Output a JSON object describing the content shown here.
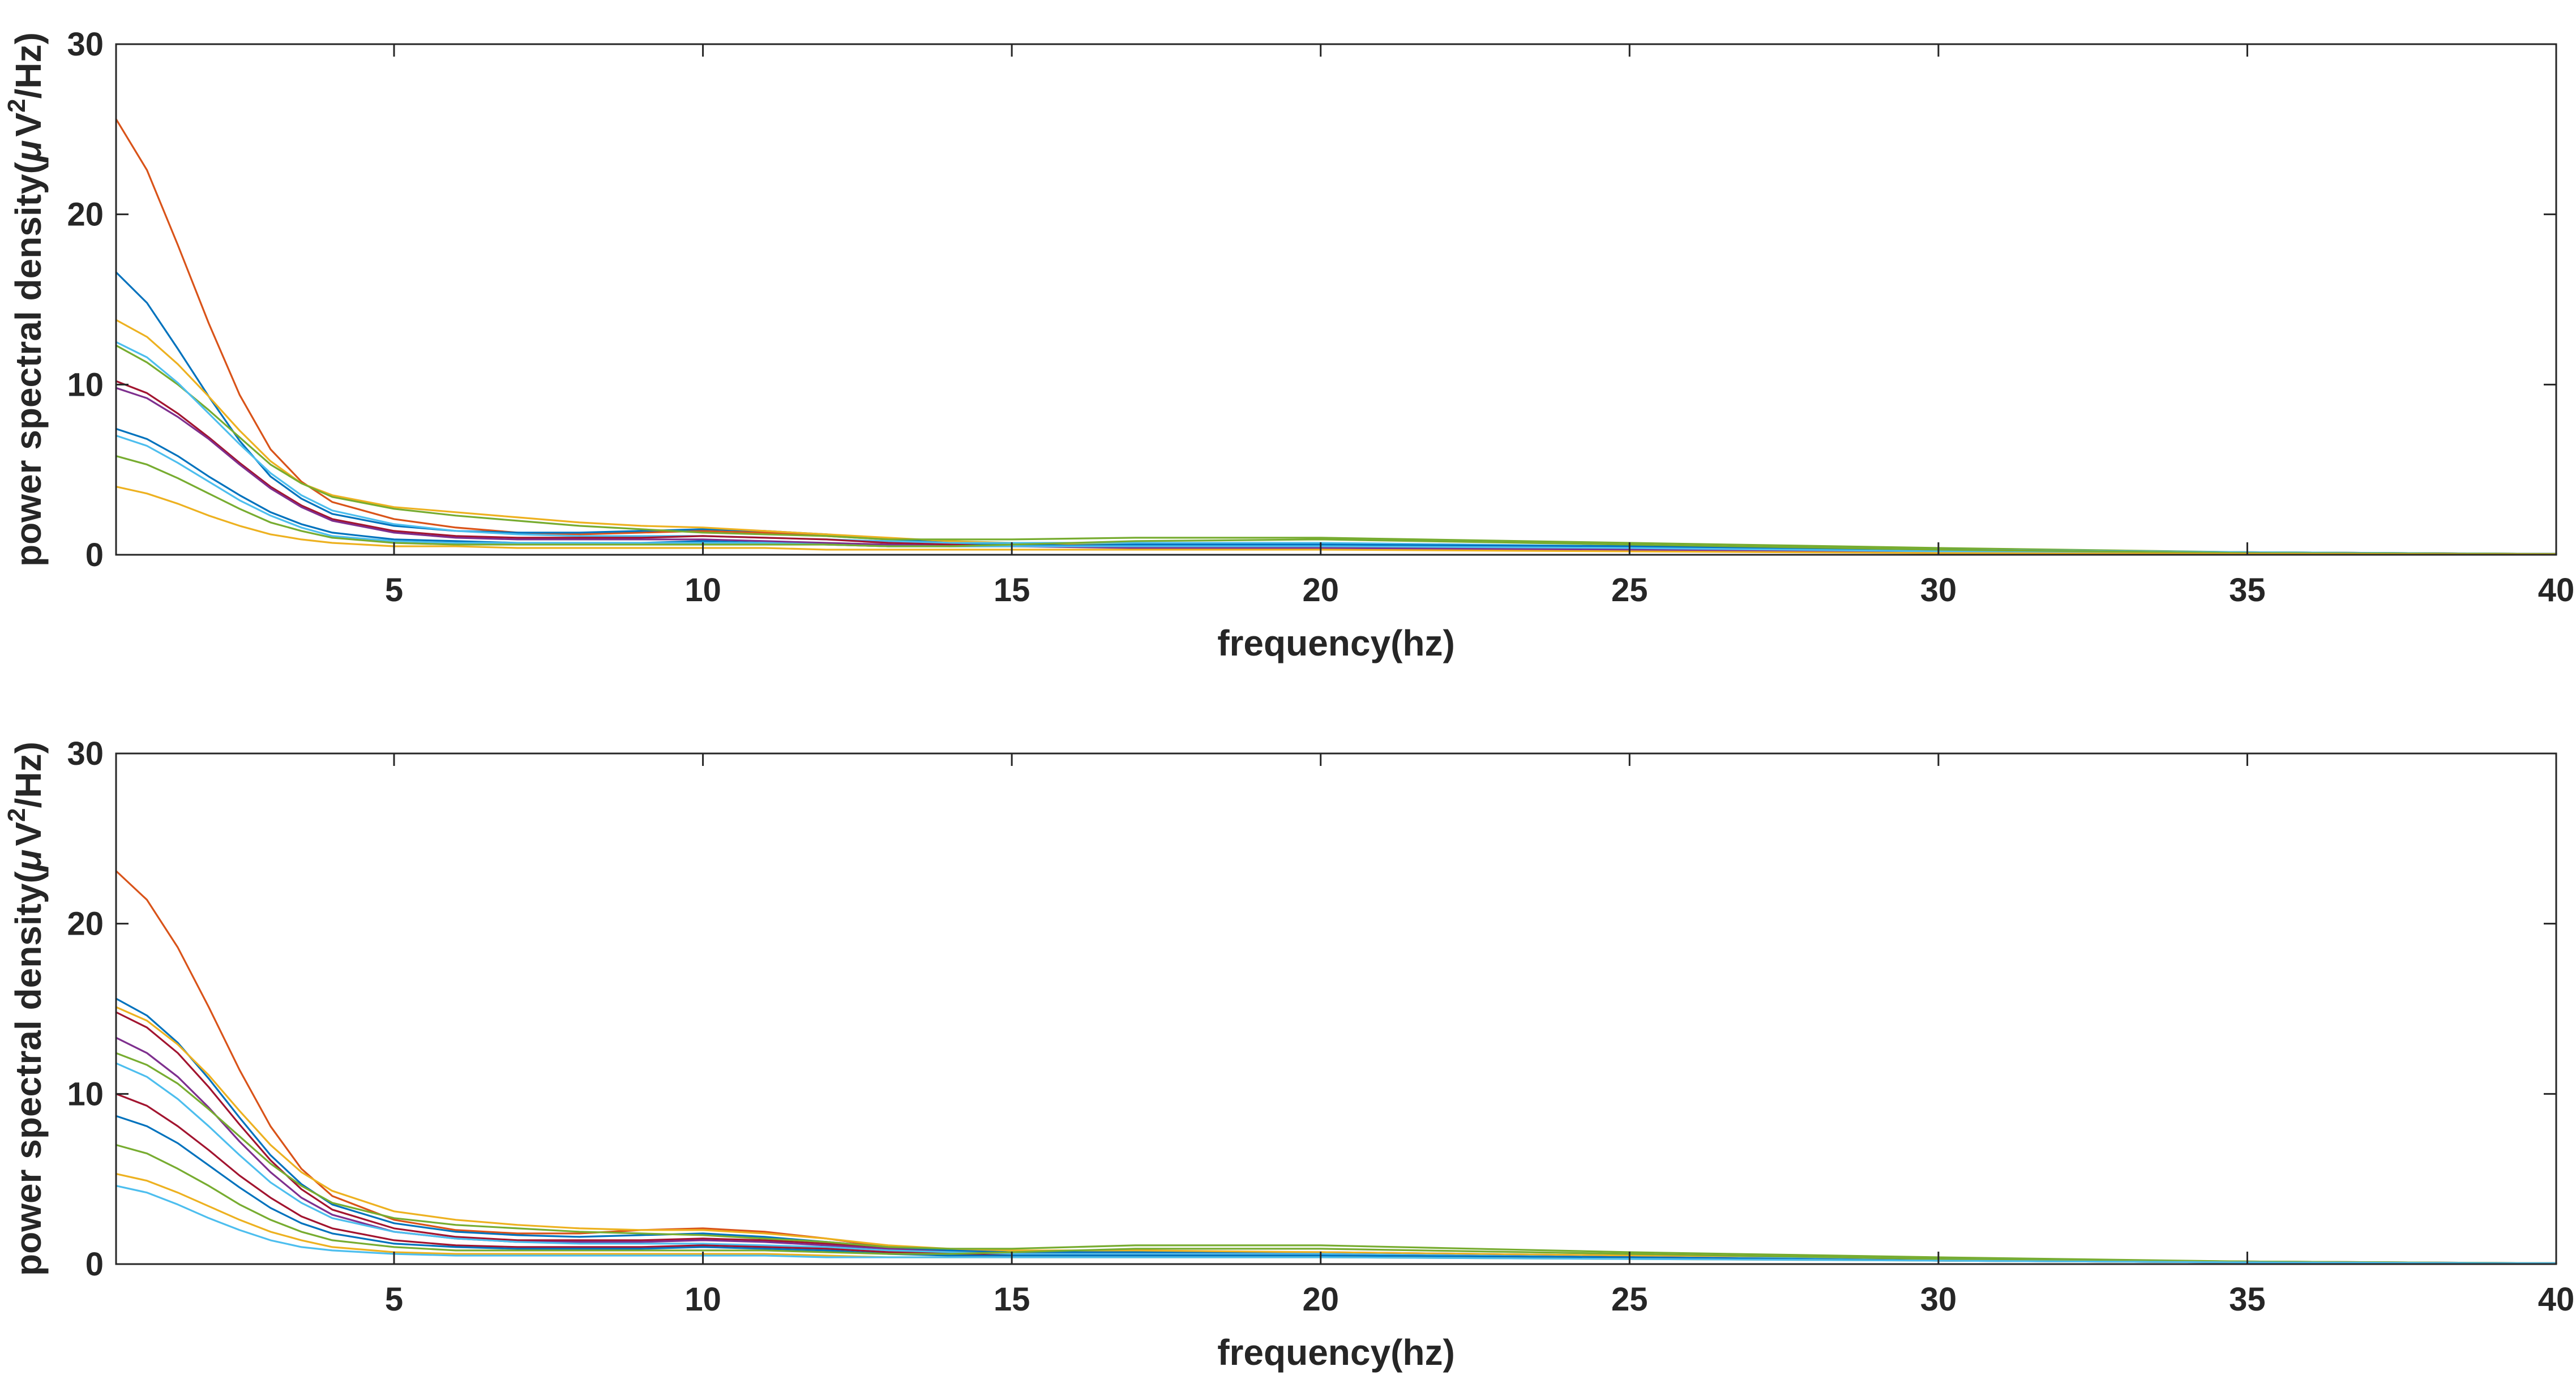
{
  "chart_data": [
    {
      "type": "line",
      "xlabel": "frequency(hz)",
      "ylabel": "power spectral density(",
      "ylabel_mu": "μ",
      "ylabel_V": "V",
      "ylabel_exp": "2",
      "ylabel_tail": "/Hz)",
      "xlim": [
        0.5,
        40
      ],
      "ylim": [
        0,
        30
      ],
      "xticks": [
        5,
        10,
        15,
        20,
        25,
        30,
        35,
        40
      ],
      "yticks": [
        0,
        10,
        20,
        30
      ],
      "xtick_labels": [
        "5",
        "10",
        "15",
        "20",
        "25",
        "30",
        "35",
        "40"
      ],
      "ytick_labels": [
        "0",
        "10",
        "20",
        "30"
      ],
      "grid": false,
      "x": [
        0.5,
        1,
        1.5,
        2,
        2.5,
        3,
        3.5,
        4,
        5,
        6,
        7,
        8,
        9,
        10,
        11,
        12,
        13,
        14,
        15,
        17,
        20,
        25,
        30,
        35,
        40
      ],
      "series": [
        {
          "color": "#D95319",
          "values": [
            25.6,
            22.6,
            18.2,
            13.6,
            9.4,
            6.2,
            4.3,
            3.1,
            2.1,
            1.6,
            1.3,
            1.2,
            1.3,
            1.4,
            1.3,
            1.1,
            0.9,
            0.7,
            0.6,
            0.5,
            0.5,
            0.4,
            0.3,
            0.15,
            0.05
          ]
        },
        {
          "color": "#0072BD",
          "values": [
            16.6,
            14.8,
            12.1,
            9.3,
            6.7,
            4.6,
            3.3,
            2.4,
            1.7,
            1.4,
            1.3,
            1.3,
            1.4,
            1.5,
            1.4,
            1.2,
            0.9,
            0.7,
            0.6,
            0.6,
            0.6,
            0.5,
            0.3,
            0.15,
            0.05
          ]
        },
        {
          "color": "#EDB120",
          "values": [
            13.8,
            12.8,
            11.2,
            9.3,
            7.3,
            5.5,
            4.2,
            3.5,
            2.8,
            2.5,
            2.2,
            1.9,
            1.7,
            1.6,
            1.4,
            1.2,
            1.0,
            0.8,
            0.7,
            0.6,
            0.6,
            0.5,
            0.3,
            0.15,
            0.05
          ]
        },
        {
          "color": "#77AC30",
          "values": [
            12.3,
            11.3,
            10.0,
            8.5,
            6.9,
            5.3,
            4.2,
            3.4,
            2.7,
            2.3,
            2.0,
            1.7,
            1.5,
            1.3,
            1.2,
            1.1,
            0.9,
            0.9,
            0.9,
            1.0,
            1.0,
            0.7,
            0.4,
            0.15,
            0.05
          ]
        },
        {
          "color": "#4DBEEE",
          "values": [
            12.5,
            11.6,
            10.1,
            8.3,
            6.5,
            4.8,
            3.5,
            2.6,
            1.8,
            1.4,
            1.2,
            1.1,
            1.1,
            1.1,
            1.0,
            0.9,
            0.8,
            0.7,
            0.7,
            0.7,
            0.7,
            0.5,
            0.3,
            0.15,
            0.05
          ]
        },
        {
          "color": "#A2142F",
          "values": [
            10.2,
            9.5,
            8.3,
            6.9,
            5.4,
            4.0,
            2.9,
            2.1,
            1.4,
            1.1,
            1.0,
            1.0,
            1.0,
            1.1,
            1.0,
            0.9,
            0.7,
            0.6,
            0.5,
            0.5,
            0.4,
            0.3,
            0.2,
            0.1,
            0.05
          ]
        },
        {
          "color": "#7E2F8E",
          "values": [
            9.8,
            9.2,
            8.1,
            6.8,
            5.3,
            3.9,
            2.8,
            2.0,
            1.3,
            1.0,
            0.9,
            0.9,
            0.9,
            0.9,
            0.8,
            0.7,
            0.6,
            0.5,
            0.5,
            0.4,
            0.4,
            0.3,
            0.2,
            0.1,
            0.05
          ]
        },
        {
          "color": "#0072BD",
          "values": [
            7.4,
            6.8,
            5.8,
            4.6,
            3.5,
            2.5,
            1.8,
            1.3,
            0.9,
            0.8,
            0.7,
            0.7,
            0.7,
            0.8,
            0.7,
            0.6,
            0.5,
            0.5,
            0.5,
            0.6,
            0.6,
            0.5,
            0.3,
            0.1,
            0.05
          ]
        },
        {
          "color": "#4DBEEE",
          "values": [
            7.0,
            6.4,
            5.4,
            4.3,
            3.2,
            2.3,
            1.6,
            1.1,
            0.8,
            0.7,
            0.7,
            0.7,
            0.7,
            0.7,
            0.7,
            0.6,
            0.5,
            0.5,
            0.5,
            0.5,
            0.5,
            0.4,
            0.2,
            0.1,
            0.05
          ]
        },
        {
          "color": "#77AC30",
          "values": [
            5.8,
            5.3,
            4.5,
            3.6,
            2.7,
            1.9,
            1.4,
            1.0,
            0.7,
            0.6,
            0.6,
            0.6,
            0.6,
            0.6,
            0.6,
            0.6,
            0.5,
            0.5,
            0.6,
            0.8,
            0.9,
            0.6,
            0.3,
            0.1,
            0.05
          ]
        },
        {
          "color": "#EDB120",
          "values": [
            4.0,
            3.6,
            3.0,
            2.3,
            1.7,
            1.2,
            0.9,
            0.7,
            0.5,
            0.5,
            0.4,
            0.4,
            0.4,
            0.4,
            0.4,
            0.3,
            0.3,
            0.3,
            0.3,
            0.3,
            0.3,
            0.2,
            0.1,
            0.05,
            0.02
          ]
        }
      ]
    },
    {
      "type": "line",
      "xlabel": "frequency(hz)",
      "ylabel": "power spectral density(",
      "ylabel_mu": "μ",
      "ylabel_V": "V",
      "ylabel_exp": "2",
      "ylabel_tail": "/Hz)",
      "xlim": [
        0.5,
        40
      ],
      "ylim": [
        0,
        30
      ],
      "xticks": [
        5,
        10,
        15,
        20,
        25,
        30,
        35,
        40
      ],
      "yticks": [
        0,
        10,
        20,
        30
      ],
      "xtick_labels": [
        "5",
        "10",
        "15",
        "20",
        "25",
        "30",
        "35",
        "40"
      ],
      "ytick_labels": [
        "0",
        "10",
        "20",
        "30"
      ],
      "grid": false,
      "x": [
        0.5,
        1,
        1.5,
        2,
        2.5,
        3,
        3.5,
        4,
        5,
        6,
        7,
        8,
        9,
        10,
        11,
        12,
        13,
        14,
        15,
        17,
        20,
        25,
        30,
        35,
        40
      ],
      "series": [
        {
          "color": "#D95319",
          "values": [
            23.1,
            21.4,
            18.6,
            15.1,
            11.4,
            8.1,
            5.6,
            4.0,
            2.6,
            2.0,
            1.8,
            1.8,
            2.0,
            2.1,
            1.9,
            1.5,
            1.0,
            0.8,
            0.7,
            0.7,
            0.7,
            0.5,
            0.3,
            0.15,
            0.05
          ]
        },
        {
          "color": "#0072BD",
          "values": [
            15.6,
            14.6,
            13.0,
            10.9,
            8.6,
            6.4,
            4.7,
            3.5,
            2.4,
            1.9,
            1.7,
            1.6,
            1.7,
            1.8,
            1.6,
            1.3,
            1.0,
            0.8,
            0.7,
            0.7,
            0.6,
            0.5,
            0.3,
            0.15,
            0.05
          ]
        },
        {
          "color": "#EDB120",
          "values": [
            15.1,
            14.3,
            12.9,
            11.1,
            9.0,
            7.0,
            5.4,
            4.3,
            3.1,
            2.6,
            2.3,
            2.1,
            2.0,
            2.0,
            1.8,
            1.5,
            1.1,
            0.9,
            0.8,
            0.8,
            0.7,
            0.5,
            0.3,
            0.15,
            0.05
          ]
        },
        {
          "color": "#A2142F",
          "values": [
            14.8,
            13.9,
            12.4,
            10.4,
            8.2,
            6.1,
            4.4,
            3.2,
            2.1,
            1.6,
            1.4,
            1.4,
            1.4,
            1.5,
            1.4,
            1.2,
            0.9,
            0.7,
            0.6,
            0.6,
            0.6,
            0.4,
            0.3,
            0.1,
            0.05
          ]
        },
        {
          "color": "#7E2F8E",
          "values": [
            13.3,
            12.4,
            11.0,
            9.2,
            7.2,
            5.4,
            3.9,
            2.9,
            1.9,
            1.5,
            1.3,
            1.3,
            1.3,
            1.4,
            1.3,
            1.1,
            0.9,
            0.7,
            0.6,
            0.6,
            0.6,
            0.4,
            0.3,
            0.1,
            0.05
          ]
        },
        {
          "color": "#77AC30",
          "values": [
            12.4,
            11.7,
            10.6,
            9.1,
            7.5,
            5.9,
            4.6,
            3.6,
            2.7,
            2.3,
            2.1,
            1.9,
            1.8,
            1.7,
            1.5,
            1.3,
            1.0,
            0.9,
            0.9,
            1.1,
            1.1,
            0.7,
            0.4,
            0.15,
            0.05
          ]
        },
        {
          "color": "#4DBEEE",
          "values": [
            11.8,
            11.0,
            9.7,
            8.1,
            6.4,
            4.8,
            3.6,
            2.7,
            1.9,
            1.5,
            1.3,
            1.2,
            1.2,
            1.2,
            1.1,
            1.0,
            0.8,
            0.7,
            0.6,
            0.6,
            0.6,
            0.4,
            0.3,
            0.1,
            0.05
          ]
        },
        {
          "color": "#A2142F",
          "values": [
            10.0,
            9.3,
            8.1,
            6.7,
            5.2,
            3.9,
            2.8,
            2.1,
            1.4,
            1.1,
            1.0,
            1.0,
            1.0,
            1.1,
            1.0,
            0.9,
            0.7,
            0.6,
            0.5,
            0.5,
            0.5,
            0.4,
            0.2,
            0.1,
            0.05
          ]
        },
        {
          "color": "#0072BD",
          "values": [
            8.7,
            8.1,
            7.1,
            5.8,
            4.5,
            3.3,
            2.4,
            1.8,
            1.2,
            1.0,
            0.9,
            0.9,
            0.9,
            1.0,
            0.9,
            0.8,
            0.6,
            0.5,
            0.5,
            0.5,
            0.5,
            0.4,
            0.2,
            0.1,
            0.05
          ]
        },
        {
          "color": "#77AC30",
          "values": [
            7.0,
            6.5,
            5.6,
            4.6,
            3.5,
            2.6,
            1.9,
            1.4,
            1.0,
            0.8,
            0.8,
            0.8,
            0.8,
            0.8,
            0.8,
            0.7,
            0.6,
            0.6,
            0.7,
            0.9,
            0.9,
            0.6,
            0.3,
            0.1,
            0.05
          ]
        },
        {
          "color": "#EDB120",
          "values": [
            5.3,
            4.9,
            4.2,
            3.4,
            2.6,
            1.9,
            1.4,
            1.0,
            0.7,
            0.6,
            0.6,
            0.6,
            0.6,
            0.6,
            0.6,
            0.5,
            0.4,
            0.4,
            0.4,
            0.4,
            0.4,
            0.3,
            0.2,
            0.1,
            0.05
          ]
        },
        {
          "color": "#4DBEEE",
          "values": [
            4.6,
            4.2,
            3.5,
            2.7,
            2.0,
            1.4,
            1.0,
            0.8,
            0.6,
            0.5,
            0.5,
            0.5,
            0.5,
            0.5,
            0.5,
            0.4,
            0.4,
            0.4,
            0.4,
            0.4,
            0.4,
            0.3,
            0.2,
            0.1,
            0.05
          ]
        }
      ]
    }
  ]
}
